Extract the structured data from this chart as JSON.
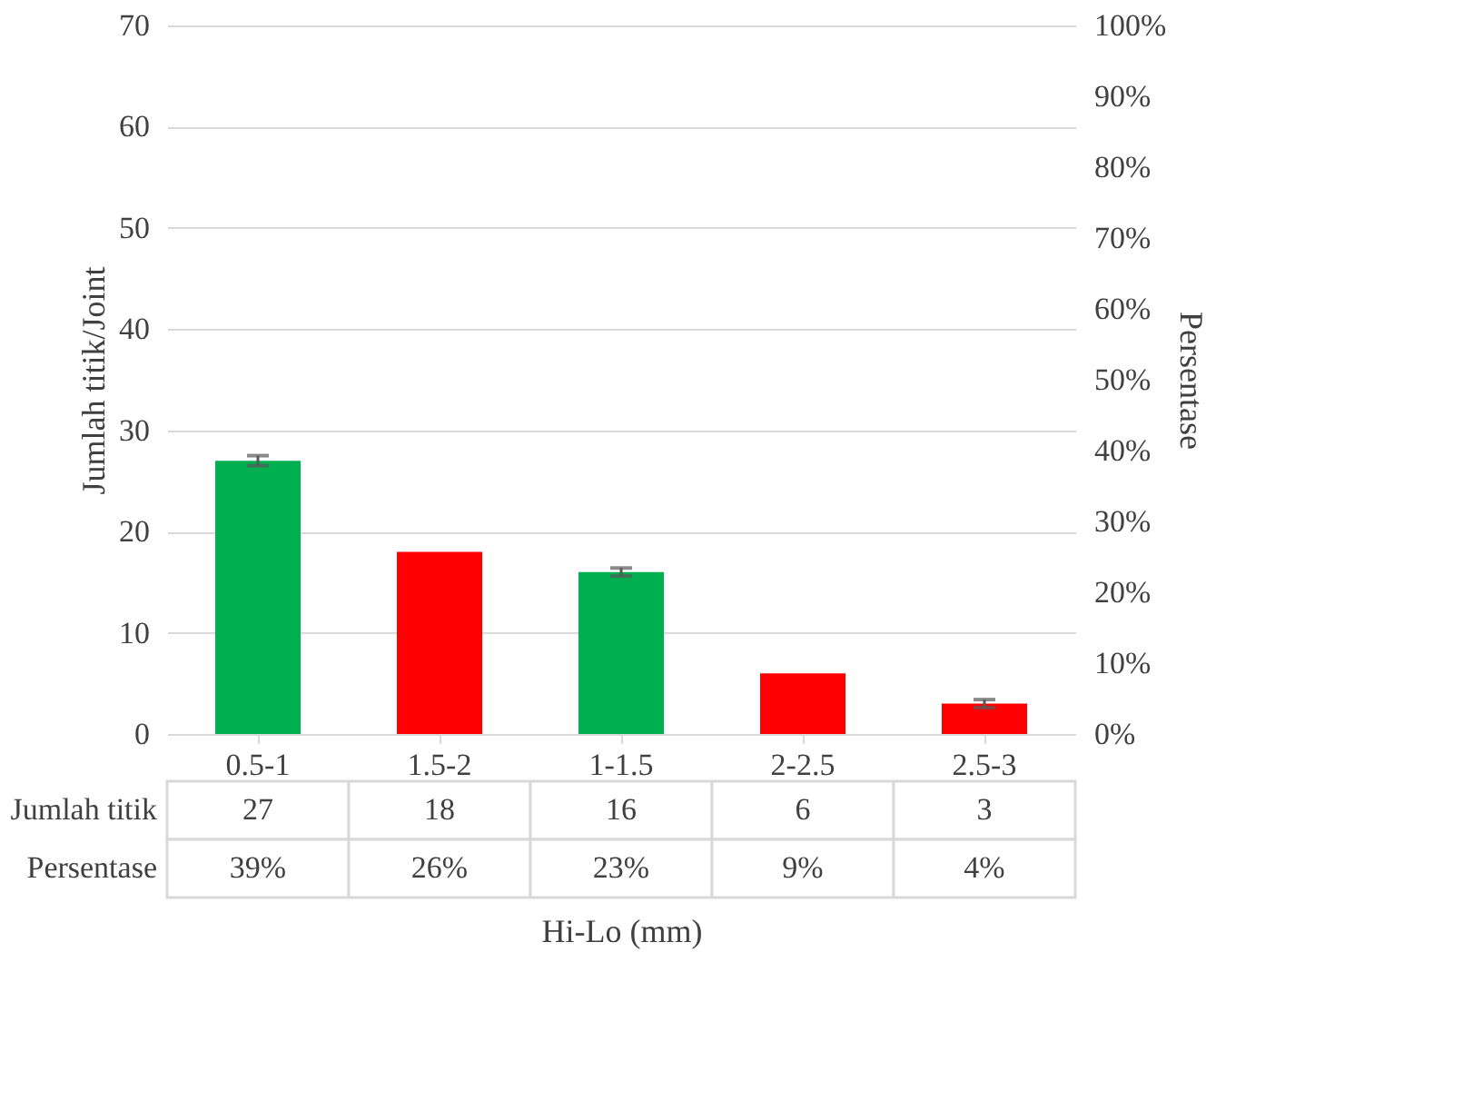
{
  "chart_data": {
    "type": "bar",
    "xlabel": "Hi-Lo (mm)",
    "ylabel": "Jumlah titik/Joint",
    "y2label": "Persentase",
    "categories": [
      "0.5-1",
      "1.5-2",
      "1-1.5",
      "2-2.5",
      "2.5-3"
    ],
    "series": [
      {
        "name": "Jumlah titik",
        "values": [
          27,
          18,
          16,
          6,
          3
        ],
        "colors": [
          "#00b050",
          "#ff0000",
          "#00b050",
          "#ff0000",
          "#ff0000"
        ],
        "errors": [
          0.5,
          null,
          0.4,
          null,
          0.4
        ]
      }
    ],
    "annotations": [
      "Persentase",
      "39%",
      "26%",
      "23%",
      "9%",
      "4%"
    ],
    "data_labels": true,
    "ylim": [
      0,
      70
    ],
    "yticks": [
      0,
      10,
      20,
      30,
      40,
      50,
      60,
      70
    ],
    "y2lim": [
      0,
      100
    ],
    "y2ticks": [
      {
        "value": 0,
        "label": "0%"
      },
      {
        "value": 10,
        "label": "10%"
      },
      {
        "value": 20,
        "label": "20%"
      },
      {
        "value": 30,
        "label": "30%"
      },
      {
        "value": 40,
        "label": "40%"
      },
      {
        "value": 50,
        "label": "50%"
      },
      {
        "value": 60,
        "label": "60%"
      },
      {
        "value": 70,
        "label": "70%"
      },
      {
        "value": 80,
        "label": "80%"
      },
      {
        "value": 90,
        "label": "90%"
      },
      {
        "value": 100,
        "label": "100%"
      }
    ],
    "grid": "y"
  }
}
